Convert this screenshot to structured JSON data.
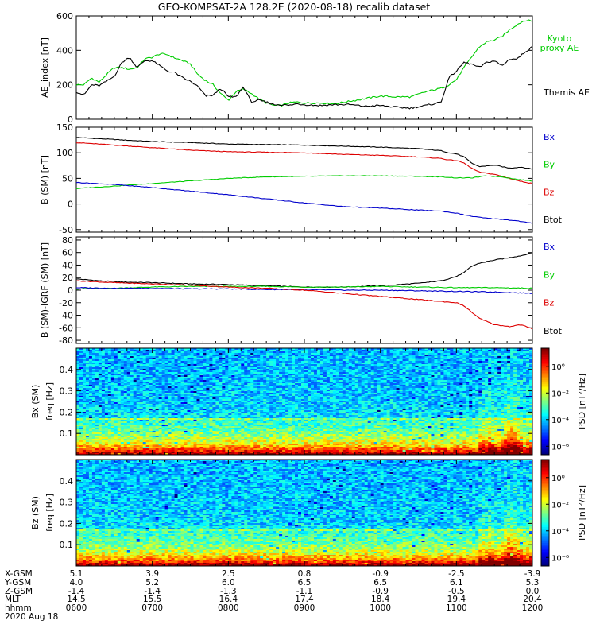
{
  "title": "GEO-KOMPSAT-2A 128.2E (2020-08-18) recalib dataset",
  "colors": {
    "bx": "#0000cc",
    "by": "#00cc00",
    "bz": "#dd0000",
    "btot": "#000000",
    "kyoto": "#00cc00",
    "themis": "#000000"
  },
  "chart_data": [
    {
      "type": "line",
      "panel": "ae",
      "ylabel": "AE_index [nT]",
      "ylim": [
        0,
        600
      ],
      "yticks": [
        0,
        200,
        400,
        600
      ],
      "x_range_hours": [
        6,
        12
      ],
      "series": [
        {
          "name": "Kyoto proxy AE",
          "color": "#00cc00",
          "x": [
            6.0,
            6.1,
            6.2,
            6.3,
            6.4,
            6.5,
            6.6,
            6.7,
            6.8,
            6.9,
            7.0,
            7.1,
            7.2,
            7.3,
            7.4,
            7.5,
            7.6,
            7.7,
            7.8,
            7.9,
            8.0,
            8.1,
            8.2,
            8.3,
            8.4,
            8.5,
            8.6,
            8.7,
            8.8,
            8.9,
            9.0,
            9.2,
            9.4,
            9.6,
            9.8,
            10.0,
            10.2,
            10.4,
            10.6,
            10.8,
            10.9,
            11.0,
            11.1,
            11.2,
            11.3,
            11.4,
            11.5,
            11.6,
            11.7,
            11.8,
            11.9,
            12.0
          ],
          "y": [
            200,
            200,
            240,
            215,
            260,
            300,
            300,
            290,
            300,
            350,
            360,
            380,
            375,
            355,
            340,
            320,
            260,
            225,
            200,
            150,
            110,
            160,
            175,
            150,
            120,
            95,
            80,
            80,
            95,
            100,
            95,
            95,
            90,
            105,
            120,
            135,
            130,
            130,
            160,
            180,
            200,
            230,
            300,
            360,
            420,
            450,
            460,
            480,
            520,
            550,
            575,
            570
          ]
        },
        {
          "name": "Themis AE",
          "color": "#000000",
          "x": [
            6.0,
            6.1,
            6.2,
            6.3,
            6.4,
            6.5,
            6.6,
            6.7,
            6.8,
            6.9,
            7.0,
            7.1,
            7.2,
            7.3,
            7.4,
            7.5,
            7.6,
            7.7,
            7.8,
            7.9,
            8.0,
            8.1,
            8.2,
            8.3,
            8.4,
            8.5,
            8.6,
            8.7,
            8.8,
            8.9,
            9.0,
            9.2,
            9.4,
            9.6,
            9.8,
            10.0,
            10.2,
            10.4,
            10.6,
            10.8,
            10.9,
            11.0,
            11.1,
            11.2,
            11.3,
            11.4,
            11.5,
            11.6,
            11.7,
            11.8,
            11.9,
            12.0
          ],
          "y": [
            160,
            140,
            200,
            195,
            220,
            250,
            330,
            360,
            300,
            340,
            340,
            310,
            280,
            270,
            240,
            220,
            190,
            135,
            140,
            180,
            130,
            130,
            190,
            100,
            110,
            100,
            85,
            85,
            80,
            90,
            85,
            80,
            85,
            85,
            75,
            80,
            70,
            65,
            80,
            100,
            240,
            280,
            330,
            320,
            300,
            330,
            340,
            310,
            350,
            350,
            390,
            420
          ]
        }
      ]
    },
    {
      "type": "line",
      "panel": "bsm",
      "ylabel": "B (SM) [nT]",
      "ylim": [
        -55,
        150
      ],
      "yticks": [
        -50,
        0,
        50,
        100,
        150
      ],
      "x_range_hours": [
        6,
        12
      ],
      "series": [
        {
          "name": "Btot",
          "color": "#000000",
          "x": [
            6.0,
            6.5,
            7.0,
            7.5,
            8.0,
            8.5,
            9.0,
            9.5,
            10.0,
            10.5,
            10.8,
            10.9,
            11.0,
            11.1,
            11.2,
            11.3,
            11.5,
            11.7,
            11.85,
            12.0
          ],
          "y": [
            130,
            126,
            122,
            120,
            117,
            116,
            115,
            113,
            111,
            108,
            104,
            100,
            98,
            92,
            80,
            73,
            76,
            70,
            72,
            68
          ]
        },
        {
          "name": "Bz",
          "color": "#dd0000",
          "x": [
            6.0,
            6.5,
            7.0,
            7.5,
            8.0,
            8.5,
            9.0,
            9.5,
            10.0,
            10.5,
            10.8,
            10.9,
            11.0,
            11.1,
            11.2,
            11.3,
            11.5,
            11.7,
            11.85,
            12.0
          ],
          "y": [
            120,
            115,
            110,
            105,
            102,
            101,
            100,
            97,
            95,
            92,
            89,
            86,
            85,
            80,
            70,
            62,
            58,
            50,
            44,
            40
          ]
        },
        {
          "name": "By",
          "color": "#00cc00",
          "x": [
            6.0,
            6.5,
            7.0,
            7.5,
            8.0,
            8.5,
            9.0,
            9.5,
            10.0,
            10.5,
            10.8,
            11.0,
            11.2,
            11.4,
            11.6,
            11.8,
            12.0
          ],
          "y": [
            30,
            35,
            40,
            45,
            50,
            53,
            54,
            55,
            55,
            54,
            53,
            51,
            51,
            55,
            53,
            48,
            45
          ]
        },
        {
          "name": "Bx",
          "color": "#0000cc",
          "x": [
            6.0,
            6.5,
            7.0,
            7.5,
            8.0,
            8.5,
            9.0,
            9.5,
            10.0,
            10.5,
            10.8,
            11.0,
            11.2,
            11.4,
            11.6,
            11.8,
            12.0
          ],
          "y": [
            42,
            38,
            32,
            25,
            18,
            10,
            2,
            -5,
            -8,
            -12,
            -14,
            -18,
            -24,
            -28,
            -30,
            -33,
            -38
          ]
        }
      ]
    },
    {
      "type": "line",
      "panel": "bigrf",
      "ylabel": "B (SM)-IGRF (SM) [nT]",
      "ylim": [
        -85,
        85
      ],
      "yticks": [
        -80,
        -60,
        -40,
        -20,
        0,
        20,
        40,
        60,
        80
      ],
      "x_range_hours": [
        6,
        12
      ],
      "series": [
        {
          "name": "Btot",
          "color": "#000000",
          "x": [
            6.0,
            6.3,
            6.6,
            7.0,
            7.5,
            8.0,
            8.5,
            9.0,
            9.5,
            10.0,
            10.5,
            10.8,
            11.0,
            11.1,
            11.2,
            11.3,
            11.5,
            11.7,
            11.85,
            12.0
          ],
          "y": [
            18,
            15,
            13,
            12,
            10,
            9,
            7,
            5,
            5,
            7,
            11,
            15,
            22,
            28,
            38,
            43,
            48,
            52,
            55,
            60
          ]
        },
        {
          "name": "By",
          "color": "#00cc00",
          "x": [
            6.0,
            6.5,
            7.0,
            7.5,
            8.0,
            8.5,
            9.0,
            9.5,
            10.0,
            10.5,
            11.0,
            11.5,
            12.0
          ],
          "y": [
            2,
            3,
            5,
            6,
            6,
            6,
            5,
            5,
            6,
            5,
            4,
            4,
            3
          ]
        },
        {
          "name": "Bx",
          "color": "#0000cc",
          "x": [
            6.0,
            6.5,
            7.0,
            7.5,
            8.0,
            8.5,
            9.0,
            9.5,
            10.0,
            10.5,
            11.0,
            11.5,
            12.0
          ],
          "y": [
            4,
            3,
            3,
            2,
            2,
            1,
            1,
            0,
            0,
            -1,
            -2,
            -3,
            -5
          ]
        },
        {
          "name": "Bz",
          "color": "#dd0000",
          "x": [
            6.0,
            6.5,
            7.0,
            7.5,
            8.0,
            8.5,
            9.0,
            9.5,
            10.0,
            10.5,
            10.8,
            11.0,
            11.1,
            11.2,
            11.3,
            11.5,
            11.7,
            11.85,
            12.0
          ],
          "y": [
            15,
            12,
            10,
            8,
            5,
            3,
            0,
            -5,
            -10,
            -15,
            -18,
            -20,
            -25,
            -35,
            -45,
            -55,
            -58,
            -55,
            -62
          ]
        }
      ]
    },
    {
      "type": "heatmap",
      "panel": "bx-spec",
      "ylabel": "Bx (SM) freq [Hz]",
      "ylim": [
        0,
        0.5
      ],
      "yticks": [
        0.1,
        0.2,
        0.3,
        0.4
      ],
      "colorbar_label": "PSD [nT²/Hz]",
      "colorbar_ticks": [
        "10⁰",
        "10⁻²",
        "10⁻⁴",
        "10⁻⁶"
      ]
    },
    {
      "type": "heatmap",
      "panel": "bz-spec",
      "ylabel": "Bz (SM) freq [Hz]",
      "ylim": [
        0,
        0.5
      ],
      "yticks": [
        0.1,
        0.2,
        0.3,
        0.4
      ],
      "colorbar_label": "PSD [nT²/Hz]",
      "colorbar_ticks": [
        "10⁰",
        "10⁻²",
        "10⁻⁴",
        "10⁻⁶"
      ]
    }
  ],
  "legends": {
    "ae": [
      "Kyoto proxy AE",
      "Themis AE"
    ],
    "bsm": [
      "Bx",
      "By",
      "Bz",
      "Btot"
    ],
    "bigrf": [
      "Bx",
      "By",
      "Bz",
      "Btot"
    ]
  },
  "ephemeris": {
    "labels": [
      "X-GSM",
      "Y-GSM",
      "Z-GSM",
      "MLT",
      "hhmm"
    ],
    "columns": [
      [
        "5.1",
        "4.0",
        "-1.4",
        "14.5",
        "0600"
      ],
      [
        "3.9",
        "5.2",
        "-1.4",
        "15.5",
        "0700"
      ],
      [
        "2.5",
        "6.0",
        "-1.3",
        "16.4",
        "0800"
      ],
      [
        "0.8",
        "6.5",
        "-1.1",
        "17.4",
        "0900"
      ],
      [
        "-0.9",
        "6.5",
        "-0.9",
        "18.4",
        "1000"
      ],
      [
        "-2.5",
        "6.1",
        "-0.5",
        "19.4",
        "1100"
      ],
      [
        "-3.9",
        "5.3",
        "0.0",
        "20.4",
        "1200"
      ]
    ],
    "date": "2020 Aug 18"
  }
}
